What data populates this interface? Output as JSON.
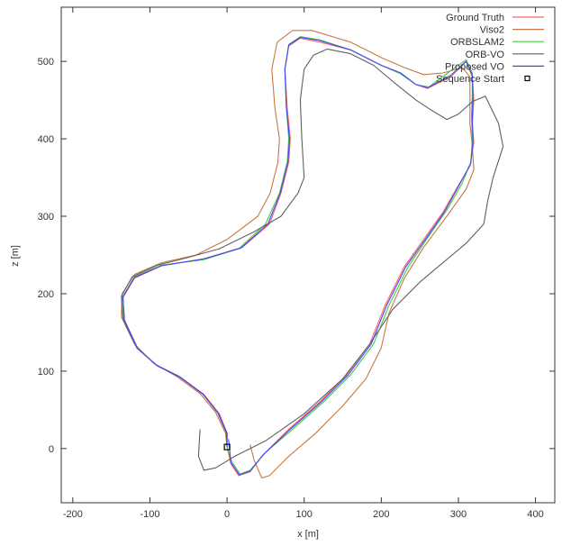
{
  "chart_data": {
    "type": "line",
    "title": "",
    "xlabel": "x [m]",
    "ylabel": "z [m]",
    "xlim": [
      -215,
      425
    ],
    "ylim": [
      -70,
      570
    ],
    "xticks": [
      -200,
      -100,
      0,
      100,
      200,
      300,
      400
    ],
    "yticks": [
      0,
      100,
      200,
      300,
      400,
      500
    ],
    "xtick_labels": [
      "-200",
      "-100",
      "0",
      "100",
      "200",
      "300",
      "400"
    ],
    "ytick_labels": [
      "0",
      "100",
      "200",
      "300",
      "400",
      "500"
    ],
    "grid": false,
    "legend_position": "top-right",
    "series": [
      {
        "name": "Ground Truth",
        "color": "#ff6060",
        "points": [
          [
            0,
            2
          ],
          [
            5,
            -20
          ],
          [
            15,
            -35
          ],
          [
            30,
            -30
          ],
          [
            45,
            -10
          ],
          [
            80,
            25
          ],
          [
            120,
            60
          ],
          [
            155,
            95
          ],
          [
            185,
            135
          ],
          [
            205,
            185
          ],
          [
            230,
            235
          ],
          [
            255,
            270
          ],
          [
            280,
            305
          ],
          [
            300,
            340
          ],
          [
            315,
            365
          ],
          [
            320,
            395
          ],
          [
            318,
            420
          ],
          [
            320,
            450
          ],
          [
            318,
            480
          ],
          [
            310,
            500
          ],
          [
            290,
            480
          ],
          [
            260,
            465
          ],
          [
            245,
            470
          ],
          [
            225,
            485
          ],
          [
            200,
            495
          ],
          [
            160,
            515
          ],
          [
            120,
            525
          ],
          [
            95,
            530
          ],
          [
            80,
            520
          ],
          [
            75,
            490
          ],
          [
            78,
            440
          ],
          [
            82,
            400
          ],
          [
            80,
            370
          ],
          [
            70,
            330
          ],
          [
            55,
            290
          ],
          [
            20,
            260
          ],
          [
            -30,
            245
          ],
          [
            -85,
            236
          ],
          [
            -120,
            220
          ],
          [
            -135,
            195
          ],
          [
            -133,
            165
          ],
          [
            -115,
            128
          ],
          [
            -90,
            107
          ],
          [
            -60,
            92
          ],
          [
            -30,
            70
          ],
          [
            -10,
            45
          ],
          [
            0,
            20
          ],
          [
            0,
            2
          ]
        ]
      },
      {
        "name": "Viso2",
        "color": "#c87844",
        "points": [
          [
            30,
            5
          ],
          [
            35,
            -15
          ],
          [
            45,
            -38
          ],
          [
            55,
            -35
          ],
          [
            80,
            -10
          ],
          [
            115,
            20
          ],
          [
            150,
            55
          ],
          [
            180,
            90
          ],
          [
            200,
            130
          ],
          [
            210,
            175
          ],
          [
            230,
            220
          ],
          [
            255,
            260
          ],
          [
            285,
            300
          ],
          [
            310,
            335
          ],
          [
            320,
            360
          ],
          [
            318,
            390
          ],
          [
            315,
            420
          ],
          [
            315,
            460
          ],
          [
            315,
            480
          ],
          [
            305,
            492
          ],
          [
            280,
            485
          ],
          [
            255,
            483
          ],
          [
            230,
            492
          ],
          [
            200,
            505
          ],
          [
            160,
            525
          ],
          [
            110,
            540
          ],
          [
            85,
            540
          ],
          [
            65,
            525
          ],
          [
            58,
            490
          ],
          [
            62,
            440
          ],
          [
            68,
            400
          ],
          [
            66,
            370
          ],
          [
            56,
            330
          ],
          [
            40,
            300
          ],
          [
            0,
            270
          ],
          [
            -40,
            250
          ],
          [
            -85,
            240
          ],
          [
            -120,
            225
          ],
          [
            -136,
            200
          ],
          [
            -137,
            170
          ],
          [
            -120,
            135
          ],
          [
            -95,
            110
          ],
          [
            -65,
            93
          ],
          [
            -35,
            71
          ],
          [
            -15,
            47
          ],
          [
            -2,
            20
          ],
          [
            0,
            2
          ]
        ]
      },
      {
        "name": "ORBSLAM2",
        "color": "#44cc44",
        "points": [
          [
            0,
            2
          ],
          [
            5,
            -15
          ],
          [
            17,
            -33
          ],
          [
            30,
            -28
          ],
          [
            50,
            -5
          ],
          [
            85,
            25
          ],
          [
            125,
            60
          ],
          [
            160,
            95
          ],
          [
            190,
            135
          ],
          [
            210,
            185
          ],
          [
            235,
            235
          ],
          [
            260,
            272
          ],
          [
            285,
            308
          ],
          [
            305,
            343
          ],
          [
            316,
            370
          ],
          [
            318,
            400
          ],
          [
            317,
            430
          ],
          [
            318,
            460
          ],
          [
            318,
            485
          ],
          [
            310,
            502
          ],
          [
            290,
            488
          ],
          [
            262,
            467
          ],
          [
            245,
            470
          ],
          [
            225,
            484
          ],
          [
            200,
            495
          ],
          [
            160,
            515
          ],
          [
            120,
            528
          ],
          [
            95,
            532
          ],
          [
            80,
            522
          ],
          [
            75,
            490
          ],
          [
            77,
            440
          ],
          [
            80,
            400
          ],
          [
            78,
            370
          ],
          [
            68,
            330
          ],
          [
            50,
            290
          ],
          [
            15,
            258
          ],
          [
            -30,
            244
          ],
          [
            -85,
            237
          ],
          [
            -120,
            222
          ],
          [
            -135,
            197
          ],
          [
            -134,
            167
          ],
          [
            -117,
            130
          ],
          [
            -92,
            108
          ],
          [
            -62,
            93
          ],
          [
            -32,
            71
          ],
          [
            -12,
            46
          ],
          [
            -1,
            21
          ],
          [
            0,
            2
          ]
        ]
      },
      {
        "name": "ORB-VO",
        "color": "#606060",
        "points": [
          [
            -35,
            25
          ],
          [
            -37,
            -10
          ],
          [
            -30,
            -28
          ],
          [
            -15,
            -25
          ],
          [
            10,
            -10
          ],
          [
            50,
            10
          ],
          [
            100,
            45
          ],
          [
            150,
            90
          ],
          [
            185,
            135
          ],
          [
            215,
            180
          ],
          [
            250,
            215
          ],
          [
            280,
            240
          ],
          [
            310,
            265
          ],
          [
            333,
            290
          ],
          [
            338,
            320
          ],
          [
            345,
            350
          ],
          [
            358,
            390
          ],
          [
            352,
            420
          ],
          [
            335,
            455
          ],
          [
            318,
            448
          ],
          [
            300,
            432
          ],
          [
            285,
            425
          ],
          [
            265,
            437
          ],
          [
            245,
            450
          ],
          [
            220,
            470
          ],
          [
            190,
            495
          ],
          [
            160,
            510
          ],
          [
            130,
            516
          ],
          [
            112,
            508
          ],
          [
            100,
            490
          ],
          [
            95,
            450
          ],
          [
            97,
            400
          ],
          [
            100,
            350
          ],
          [
            92,
            330
          ],
          [
            70,
            300
          ],
          [
            35,
            280
          ],
          [
            -10,
            258
          ],
          [
            -50,
            247
          ],
          [
            -90,
            237
          ],
          [
            -123,
            222
          ],
          [
            -137,
            197
          ],
          [
            -135,
            167
          ],
          [
            -117,
            130
          ],
          [
            -92,
            108
          ],
          [
            -62,
            93
          ],
          [
            -32,
            71
          ],
          [
            -12,
            46
          ],
          [
            -1,
            21
          ],
          [
            0,
            2
          ]
        ]
      },
      {
        "name": "Proposed VO",
        "color": "#4444ff",
        "points": [
          [
            2,
            12
          ],
          [
            5,
            -18
          ],
          [
            16,
            -34
          ],
          [
            30,
            -29
          ],
          [
            47,
            -8
          ],
          [
            82,
            25
          ],
          [
            122,
            60
          ],
          [
            157,
            95
          ],
          [
            187,
            135
          ],
          [
            207,
            185
          ],
          [
            232,
            235
          ],
          [
            257,
            270
          ],
          [
            282,
            306
          ],
          [
            302,
            342
          ],
          [
            316,
            368
          ],
          [
            319,
            397
          ],
          [
            318,
            425
          ],
          [
            319,
            455
          ],
          [
            318,
            482
          ],
          [
            310,
            500
          ],
          [
            290,
            482
          ],
          [
            260,
            466
          ],
          [
            245,
            470
          ],
          [
            225,
            485
          ],
          [
            200,
            495
          ],
          [
            160,
            515
          ],
          [
            120,
            527
          ],
          [
            95,
            531
          ],
          [
            80,
            521
          ],
          [
            75,
            490
          ],
          [
            77,
            440
          ],
          [
            81,
            400
          ],
          [
            79,
            370
          ],
          [
            69,
            330
          ],
          [
            53,
            290
          ],
          [
            18,
            259
          ],
          [
            -30,
            245
          ],
          [
            -85,
            236
          ],
          [
            -120,
            221
          ],
          [
            -135,
            196
          ],
          [
            -133,
            166
          ],
          [
            -116,
            129
          ],
          [
            -91,
            107
          ],
          [
            -61,
            92
          ],
          [
            -31,
            70
          ],
          [
            -11,
            45
          ],
          [
            0,
            20
          ],
          [
            0,
            2
          ]
        ]
      }
    ],
    "markers": [
      {
        "name": "Sequence Start",
        "x": 0,
        "y": 2,
        "symbol": "square",
        "color": "#000000"
      }
    ]
  }
}
